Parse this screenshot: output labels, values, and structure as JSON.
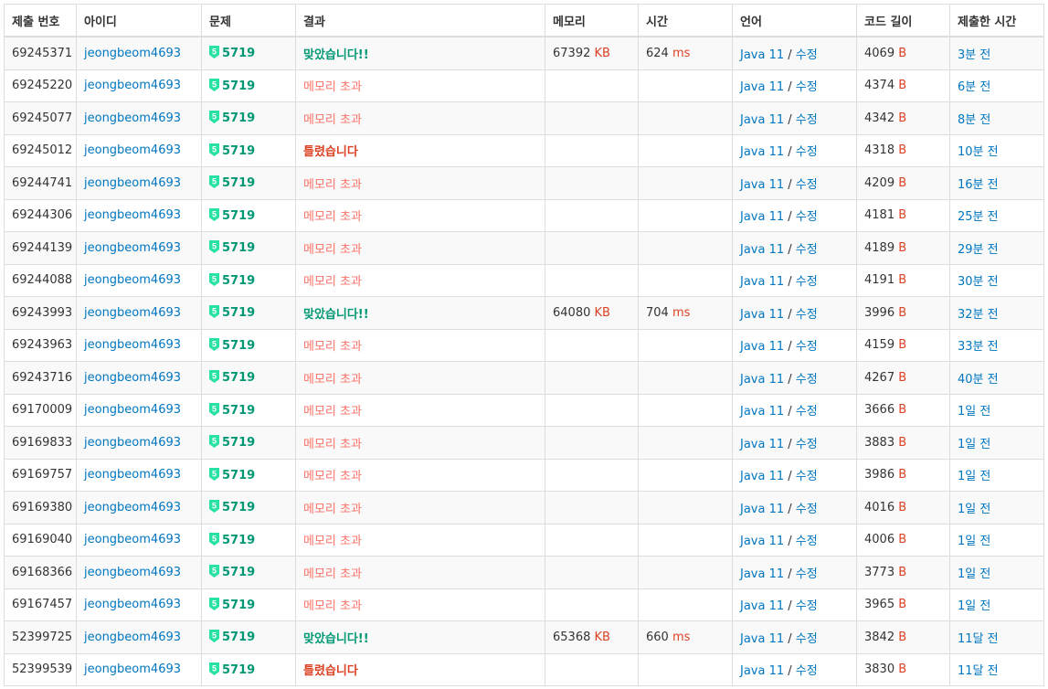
{
  "colors": {
    "accepted": "#009874",
    "memory_exceeded": "#fa7268",
    "wrong_answer": "#dd4124",
    "link": "#0076c0",
    "unit": "#dd4124",
    "tier_badge": "#27e2a4"
  },
  "headers": [
    "제출 번호",
    "아이디",
    "문제",
    "결과",
    "메모리",
    "시간",
    "언어",
    "코드 길이",
    "제출한 시간"
  ],
  "units": {
    "memory": "KB",
    "time": "ms",
    "length": "B"
  },
  "language": {
    "name": "Java 11",
    "separator": " / ",
    "edit": "수정"
  },
  "tier_icon": "solved-tier-badge-icon",
  "tier_badge_number": "5",
  "rows": [
    {
      "id": "69245371",
      "user": "jeongbeom4693",
      "problem": "5719",
      "result": "맞았습니다!!",
      "result_type": "ac",
      "memory": "67392",
      "time": "624",
      "length": "4069",
      "ago": "3분 전"
    },
    {
      "id": "69245220",
      "user": "jeongbeom4693",
      "problem": "5719",
      "result": "메모리 초과",
      "result_type": "mle",
      "memory": "",
      "time": "",
      "length": "4374",
      "ago": "6분 전"
    },
    {
      "id": "69245077",
      "user": "jeongbeom4693",
      "problem": "5719",
      "result": "메모리 초과",
      "result_type": "mle",
      "memory": "",
      "time": "",
      "length": "4342",
      "ago": "8분 전"
    },
    {
      "id": "69245012",
      "user": "jeongbeom4693",
      "problem": "5719",
      "result": "틀렸습니다",
      "result_type": "wa",
      "memory": "",
      "time": "",
      "length": "4318",
      "ago": "10분 전"
    },
    {
      "id": "69244741",
      "user": "jeongbeom4693",
      "problem": "5719",
      "result": "메모리 초과",
      "result_type": "mle",
      "memory": "",
      "time": "",
      "length": "4209",
      "ago": "16분 전"
    },
    {
      "id": "69244306",
      "user": "jeongbeom4693",
      "problem": "5719",
      "result": "메모리 초과",
      "result_type": "mle",
      "memory": "",
      "time": "",
      "length": "4181",
      "ago": "25분 전"
    },
    {
      "id": "69244139",
      "user": "jeongbeom4693",
      "problem": "5719",
      "result": "메모리 초과",
      "result_type": "mle",
      "memory": "",
      "time": "",
      "length": "4189",
      "ago": "29분 전"
    },
    {
      "id": "69244088",
      "user": "jeongbeom4693",
      "problem": "5719",
      "result": "메모리 초과",
      "result_type": "mle",
      "memory": "",
      "time": "",
      "length": "4191",
      "ago": "30분 전"
    },
    {
      "id": "69243993",
      "user": "jeongbeom4693",
      "problem": "5719",
      "result": "맞았습니다!!",
      "result_type": "ac",
      "memory": "64080",
      "time": "704",
      "length": "3996",
      "ago": "32분 전"
    },
    {
      "id": "69243963",
      "user": "jeongbeom4693",
      "problem": "5719",
      "result": "메모리 초과",
      "result_type": "mle",
      "memory": "",
      "time": "",
      "length": "4159",
      "ago": "33분 전"
    },
    {
      "id": "69243716",
      "user": "jeongbeom4693",
      "problem": "5719",
      "result": "메모리 초과",
      "result_type": "mle",
      "memory": "",
      "time": "",
      "length": "4267",
      "ago": "40분 전"
    },
    {
      "id": "69170009",
      "user": "jeongbeom4693",
      "problem": "5719",
      "result": "메모리 초과",
      "result_type": "mle",
      "memory": "",
      "time": "",
      "length": "3666",
      "ago": "1일 전"
    },
    {
      "id": "69169833",
      "user": "jeongbeom4693",
      "problem": "5719",
      "result": "메모리 초과",
      "result_type": "mle",
      "memory": "",
      "time": "",
      "length": "3883",
      "ago": "1일 전"
    },
    {
      "id": "69169757",
      "user": "jeongbeom4693",
      "problem": "5719",
      "result": "메모리 초과",
      "result_type": "mle",
      "memory": "",
      "time": "",
      "length": "3986",
      "ago": "1일 전"
    },
    {
      "id": "69169380",
      "user": "jeongbeom4693",
      "problem": "5719",
      "result": "메모리 초과",
      "result_type": "mle",
      "memory": "",
      "time": "",
      "length": "4016",
      "ago": "1일 전"
    },
    {
      "id": "69169040",
      "user": "jeongbeom4693",
      "problem": "5719",
      "result": "메모리 초과",
      "result_type": "mle",
      "memory": "",
      "time": "",
      "length": "4006",
      "ago": "1일 전"
    },
    {
      "id": "69168366",
      "user": "jeongbeom4693",
      "problem": "5719",
      "result": "메모리 초과",
      "result_type": "mle",
      "memory": "",
      "time": "",
      "length": "3773",
      "ago": "1일 전"
    },
    {
      "id": "69167457",
      "user": "jeongbeom4693",
      "problem": "5719",
      "result": "메모리 초과",
      "result_type": "mle",
      "memory": "",
      "time": "",
      "length": "3965",
      "ago": "1일 전"
    },
    {
      "id": "52399725",
      "user": "jeongbeom4693",
      "problem": "5719",
      "result": "맞았습니다!!",
      "result_type": "ac",
      "memory": "65368",
      "time": "660",
      "length": "3842",
      "ago": "11달 전"
    },
    {
      "id": "52399539",
      "user": "jeongbeom4693",
      "problem": "5719",
      "result": "틀렸습니다",
      "result_type": "wa",
      "memory": "",
      "time": "",
      "length": "3830",
      "ago": "11달 전"
    }
  ]
}
